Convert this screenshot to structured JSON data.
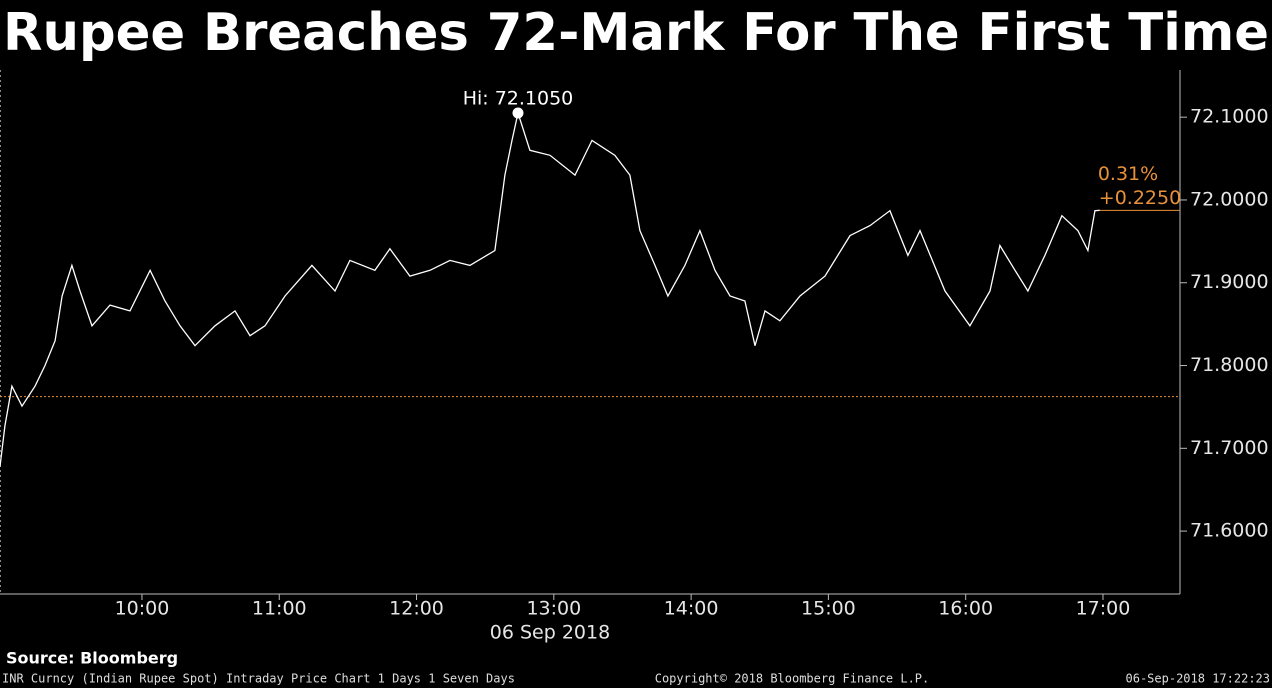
{
  "chart_data": {
    "type": "line",
    "title": "Rupee Breaches 72-Mark For The First Time",
    "x_label": "06 Sep 2018",
    "x": [
      8.966,
      9.002,
      9.053,
      9.126,
      9.221,
      9.294,
      9.367,
      9.418,
      9.49,
      9.549,
      9.636,
      9.767,
      9.913,
      10.059,
      10.168,
      10.277,
      10.386,
      10.532,
      10.678,
      10.787,
      10.896,
      11.042,
      11.238,
      11.406,
      11.515,
      11.697,
      11.806,
      11.952,
      12.098,
      12.244,
      12.389,
      12.571,
      12.644,
      12.695,
      12.739,
      12.826,
      12.972,
      13.154,
      13.278,
      13.445,
      13.554,
      13.627,
      13.737,
      13.831,
      13.955,
      14.064,
      14.174,
      14.283,
      14.392,
      14.465,
      14.538,
      14.647,
      14.793,
      14.975,
      15.157,
      15.303,
      15.448,
      15.579,
      15.667,
      15.849,
      16.031,
      16.177,
      16.249,
      16.359,
      16.453,
      16.577,
      16.701,
      16.817,
      16.89,
      16.941,
      16.977
    ],
    "values": [
      71.678,
      71.727,
      71.775,
      71.751,
      71.775,
      71.8,
      71.83,
      71.884,
      71.921,
      71.89,
      71.848,
      71.873,
      71.866,
      71.915,
      71.878,
      71.848,
      71.824,
      71.848,
      71.866,
      71.836,
      71.848,
      71.884,
      71.921,
      71.89,
      71.927,
      71.915,
      71.941,
      71.908,
      71.915,
      71.927,
      71.921,
      71.939,
      72.03,
      72.072,
      72.105,
      72.06,
      72.054,
      72.03,
      72.072,
      72.054,
      72.03,
      71.963,
      71.921,
      71.884,
      71.921,
      71.963,
      71.915,
      71.884,
      71.878,
      71.824,
      71.866,
      71.854,
      71.884,
      71.908,
      71.957,
      71.969,
      71.987,
      71.933,
      71.963,
      71.89,
      71.848,
      71.89,
      71.945,
      71.915,
      71.89,
      71.933,
      71.981,
      71.963,
      71.939,
      71.987,
      71.9875
    ],
    "color": "#ffffff",
    "xlim": [
      8.966,
      17.561
    ],
    "ylim": [
      71.524,
      72.157
    ],
    "xticks": [
      {
        "value": 10,
        "label": "10:00"
      },
      {
        "value": 11,
        "label": "11:00"
      },
      {
        "value": 12,
        "label": "12:00"
      },
      {
        "value": 13,
        "label": "13:00"
      },
      {
        "value": 14,
        "label": "14:00"
      },
      {
        "value": 15,
        "label": "15:00"
      },
      {
        "value": 16,
        "label": "16:00"
      },
      {
        "value": 17,
        "label": "17:00"
      }
    ],
    "yticks": [
      {
        "value": 71.6,
        "label": "71.6000"
      },
      {
        "value": 71.7,
        "label": "71.7000"
      },
      {
        "value": 71.8,
        "label": "71.8000"
      },
      {
        "value": 71.9,
        "label": "71.9000"
      },
      {
        "value": 72.0,
        "label": "72.0000"
      },
      {
        "value": 72.1,
        "label": "72.1000"
      }
    ],
    "high": {
      "label": "Hi: 72.1050",
      "x": 12.739,
      "value": 72.105
    },
    "previous_close": {
      "value": 71.7625,
      "color": "#e8913a"
    },
    "change": {
      "percent_label": "0.31%",
      "change_label": "+0.2250",
      "color": "#e8913a"
    }
  },
  "footer": {
    "source": "Source: Bloomberg",
    "description": "INR Curncy (Indian Rupee Spot) Intraday Price Chart 1 Days 1 Seven Days",
    "copyright": "Copyright© 2018 Bloomberg Finance L.P.",
    "timestamp": "06-Sep-2018 17:22:23"
  }
}
